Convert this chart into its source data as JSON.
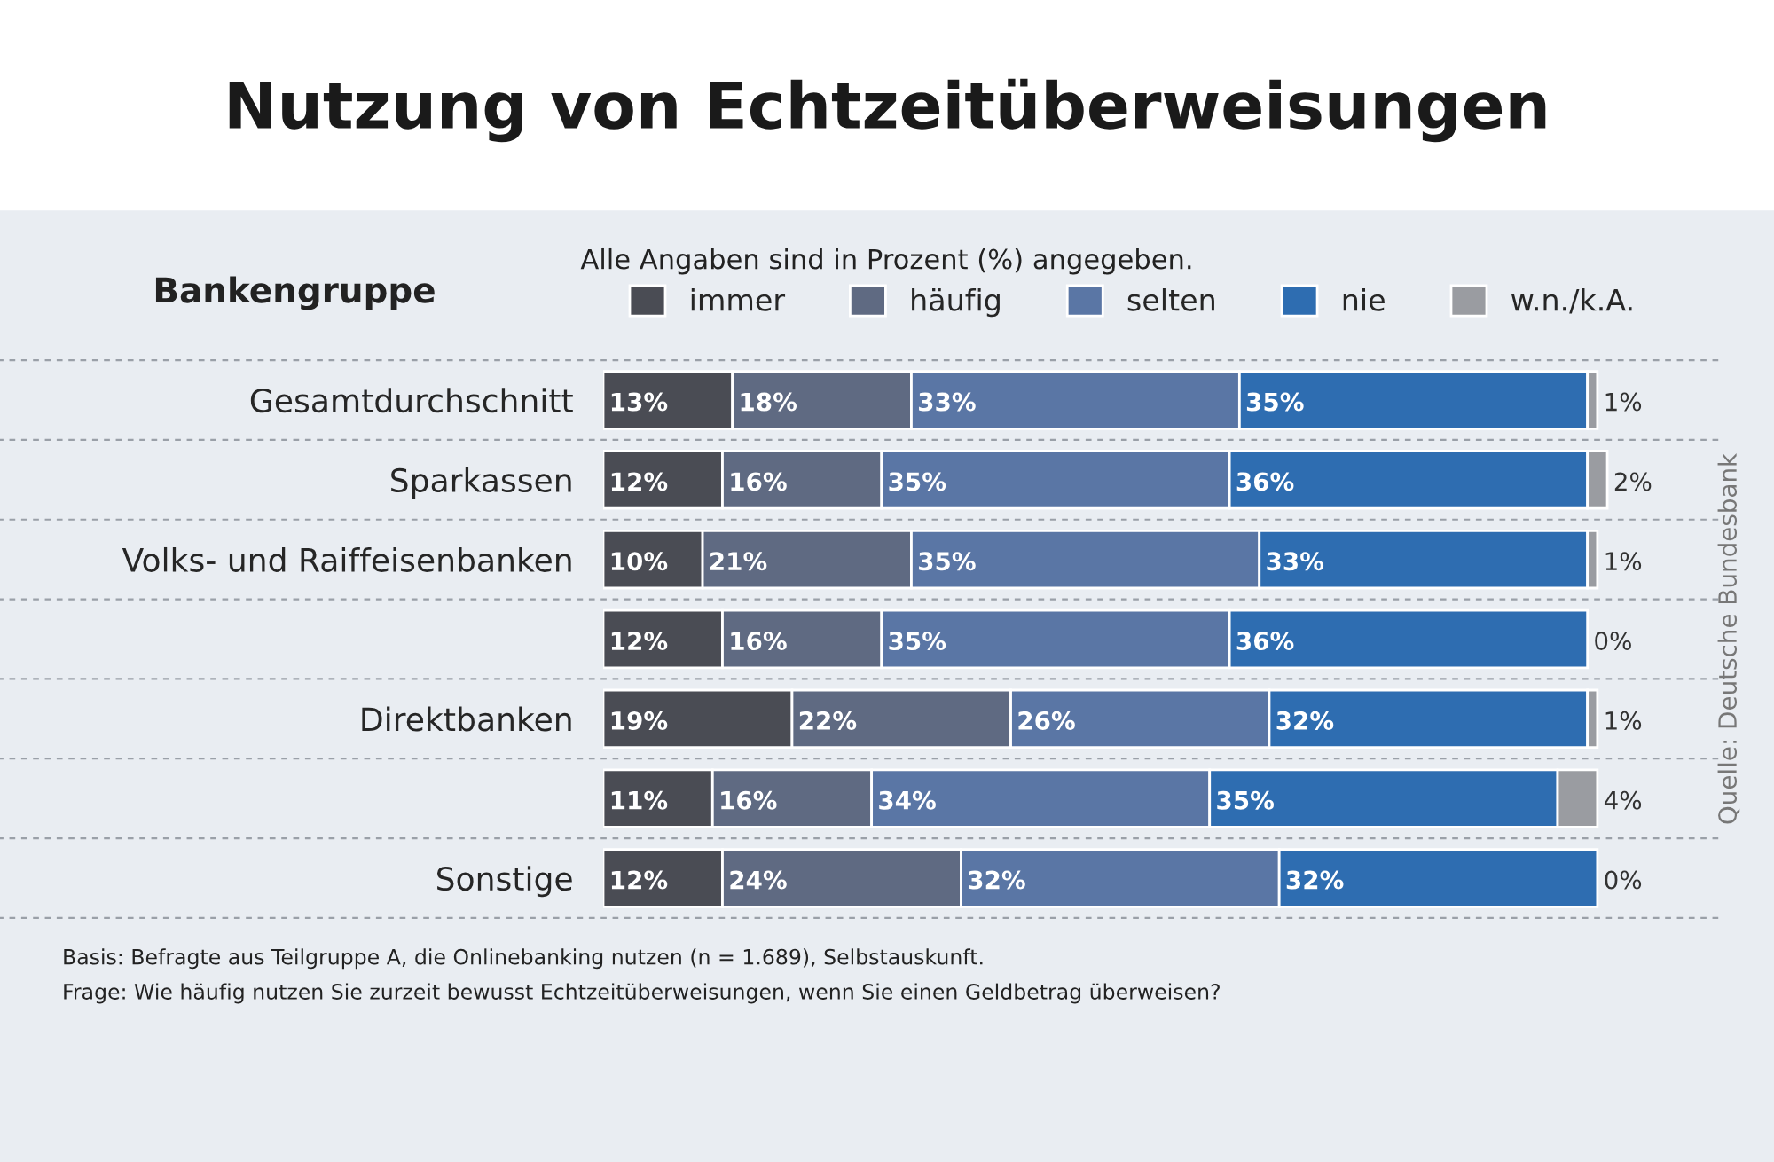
{
  "chart_data": {
    "type": "bar",
    "orientation": "horizontal",
    "stacked": true,
    "title": "Nutzung von Echtzeitüberweisungen",
    "subtitle": "Alle Angaben sind in Prozent (%) angegeben.",
    "ylabel": "Bankengruppe",
    "categories": [
      "Gesamtdurchschnitt",
      "Sparkassen",
      "Volks- und Raiffeisenbanken",
      null,
      "Direktbanken",
      null,
      "Sonstige"
    ],
    "series": [
      {
        "name": "immer",
        "color": "#4a4c54",
        "values": [
          13,
          12,
          10,
          12,
          19,
          11,
          12
        ],
        "value_labels": [
          "13%",
          "12%",
          "10%",
          "12%",
          "19%",
          "11%",
          "12%"
        ]
      },
      {
        "name": "häufig",
        "color": "#5f6a82",
        "values": [
          18,
          16,
          21,
          16,
          22,
          16,
          24
        ],
        "value_labels": [
          "18%",
          "16%",
          "21%",
          "16%",
          "22%",
          "16%",
          "24%"
        ]
      },
      {
        "name": "selten",
        "color": "#5a76a5",
        "values": [
          33,
          35,
          35,
          35,
          26,
          34,
          32
        ],
        "value_labels": [
          "33%",
          "35%",
          "35%",
          "35%",
          "26%",
          "34%",
          "32%"
        ]
      },
      {
        "name": "nie",
        "color": "#2e6db1",
        "values": [
          35,
          36,
          33,
          36,
          32,
          35,
          32
        ],
        "value_labels": [
          "35%",
          "36%",
          "33%",
          "36%",
          "32%",
          "35%",
          "32%"
        ]
      },
      {
        "name": "w.n./k.A.",
        "color": "#9a9ca1",
        "values": [
          1,
          2,
          1,
          0,
          1,
          4,
          0
        ],
        "value_labels": [
          "1%",
          "2%",
          "1%",
          "0%",
          "1%",
          "4%",
          "0%"
        ]
      }
    ],
    "legend": "top",
    "tick_labels": "y",
    "annotations": [
      "Basis: Befragte aus Teilgruppe A, die Onlinebanking nutzen (n = 1.689), Selbstauskunft.",
      "Frage: Wie häufig nutzen Sie zurzeit bewusst Echtzeitüberweisungen, wenn Sie einen Geldbetrag überweisen?",
      "Quelle: Deutsche Bundesbank"
    ]
  }
}
